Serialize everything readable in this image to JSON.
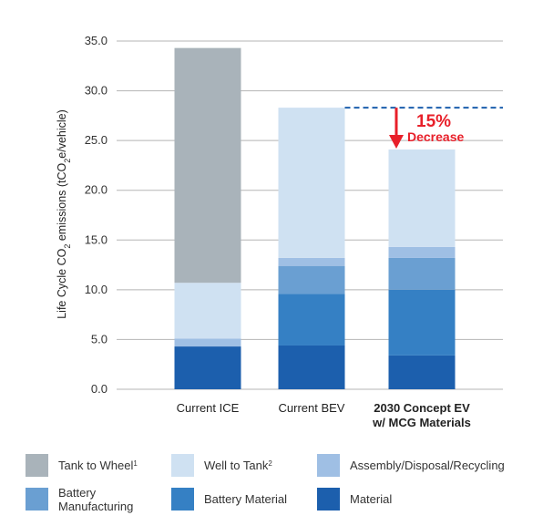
{
  "chart_data": {
    "type": "bar",
    "stacked": true,
    "categories": [
      {
        "lines": [
          "Current ICE"
        ],
        "bold": false
      },
      {
        "lines": [
          "Current BEV"
        ],
        "bold": false
      },
      {
        "lines": [
          "2030 Concept EV",
          "w/ MCG Materials"
        ],
        "bold": true
      }
    ],
    "series": [
      {
        "name": "Material",
        "color": "#1c5fad",
        "values": [
          4.3,
          4.4,
          3.4
        ]
      },
      {
        "name": "Battery Material",
        "color": "#3580c4",
        "values": [
          0,
          5.2,
          6.6
        ]
      },
      {
        "name": "Battery Manufacturing",
        "color": "#6a9fd2",
        "values": [
          0,
          2.8,
          3.2
        ]
      },
      {
        "name": "Assembly/Disposal/Recycling",
        "color": "#9fbfe4",
        "values": [
          0.8,
          0.8,
          1.1
        ]
      },
      {
        "name": "Well to Tank",
        "color": "#cfe1f2",
        "values": [
          5.6,
          15.1,
          9.8
        ]
      },
      {
        "name": "Tank to Wheel",
        "color": "#a9b3ba",
        "values": [
          23.6,
          0,
          0
        ]
      }
    ],
    "ylim": [
      0,
      35
    ],
    "yticks": [
      "0.0",
      "5.0",
      "10.0",
      "15.0",
      "20.0",
      "25.0",
      "30.0",
      "35.0"
    ],
    "ylabel": {
      "pre": "Life Cycle CO",
      "sub1": "2",
      "mid": " emissions (tCO",
      "sub2": "2",
      "post": "e/vehicle)"
    },
    "grid": true,
    "annotation": {
      "percent": "15%",
      "word": "Decrease",
      "color": "#e8202a",
      "reference_value": 28.3,
      "target_value": 24.1,
      "reference_line_color": "#1c5fad"
    }
  },
  "legend": {
    "items": [
      {
        "label": "Tank to Wheel",
        "sup": "1",
        "color": "#a9b3ba"
      },
      {
        "label": "Well to Tank",
        "sup": "2",
        "color": "#cfe1f2"
      },
      {
        "label": "Assembly/Disposal/Recycling",
        "sup": "",
        "color": "#9fbfe4"
      },
      {
        "label": "Battery",
        "label2": "Manufacturing",
        "sup": "",
        "color": "#6a9fd2"
      },
      {
        "label": "Battery Material",
        "sup": "",
        "color": "#3580c4"
      },
      {
        "label": "Material",
        "sup": "",
        "color": "#1c5fad"
      }
    ]
  }
}
